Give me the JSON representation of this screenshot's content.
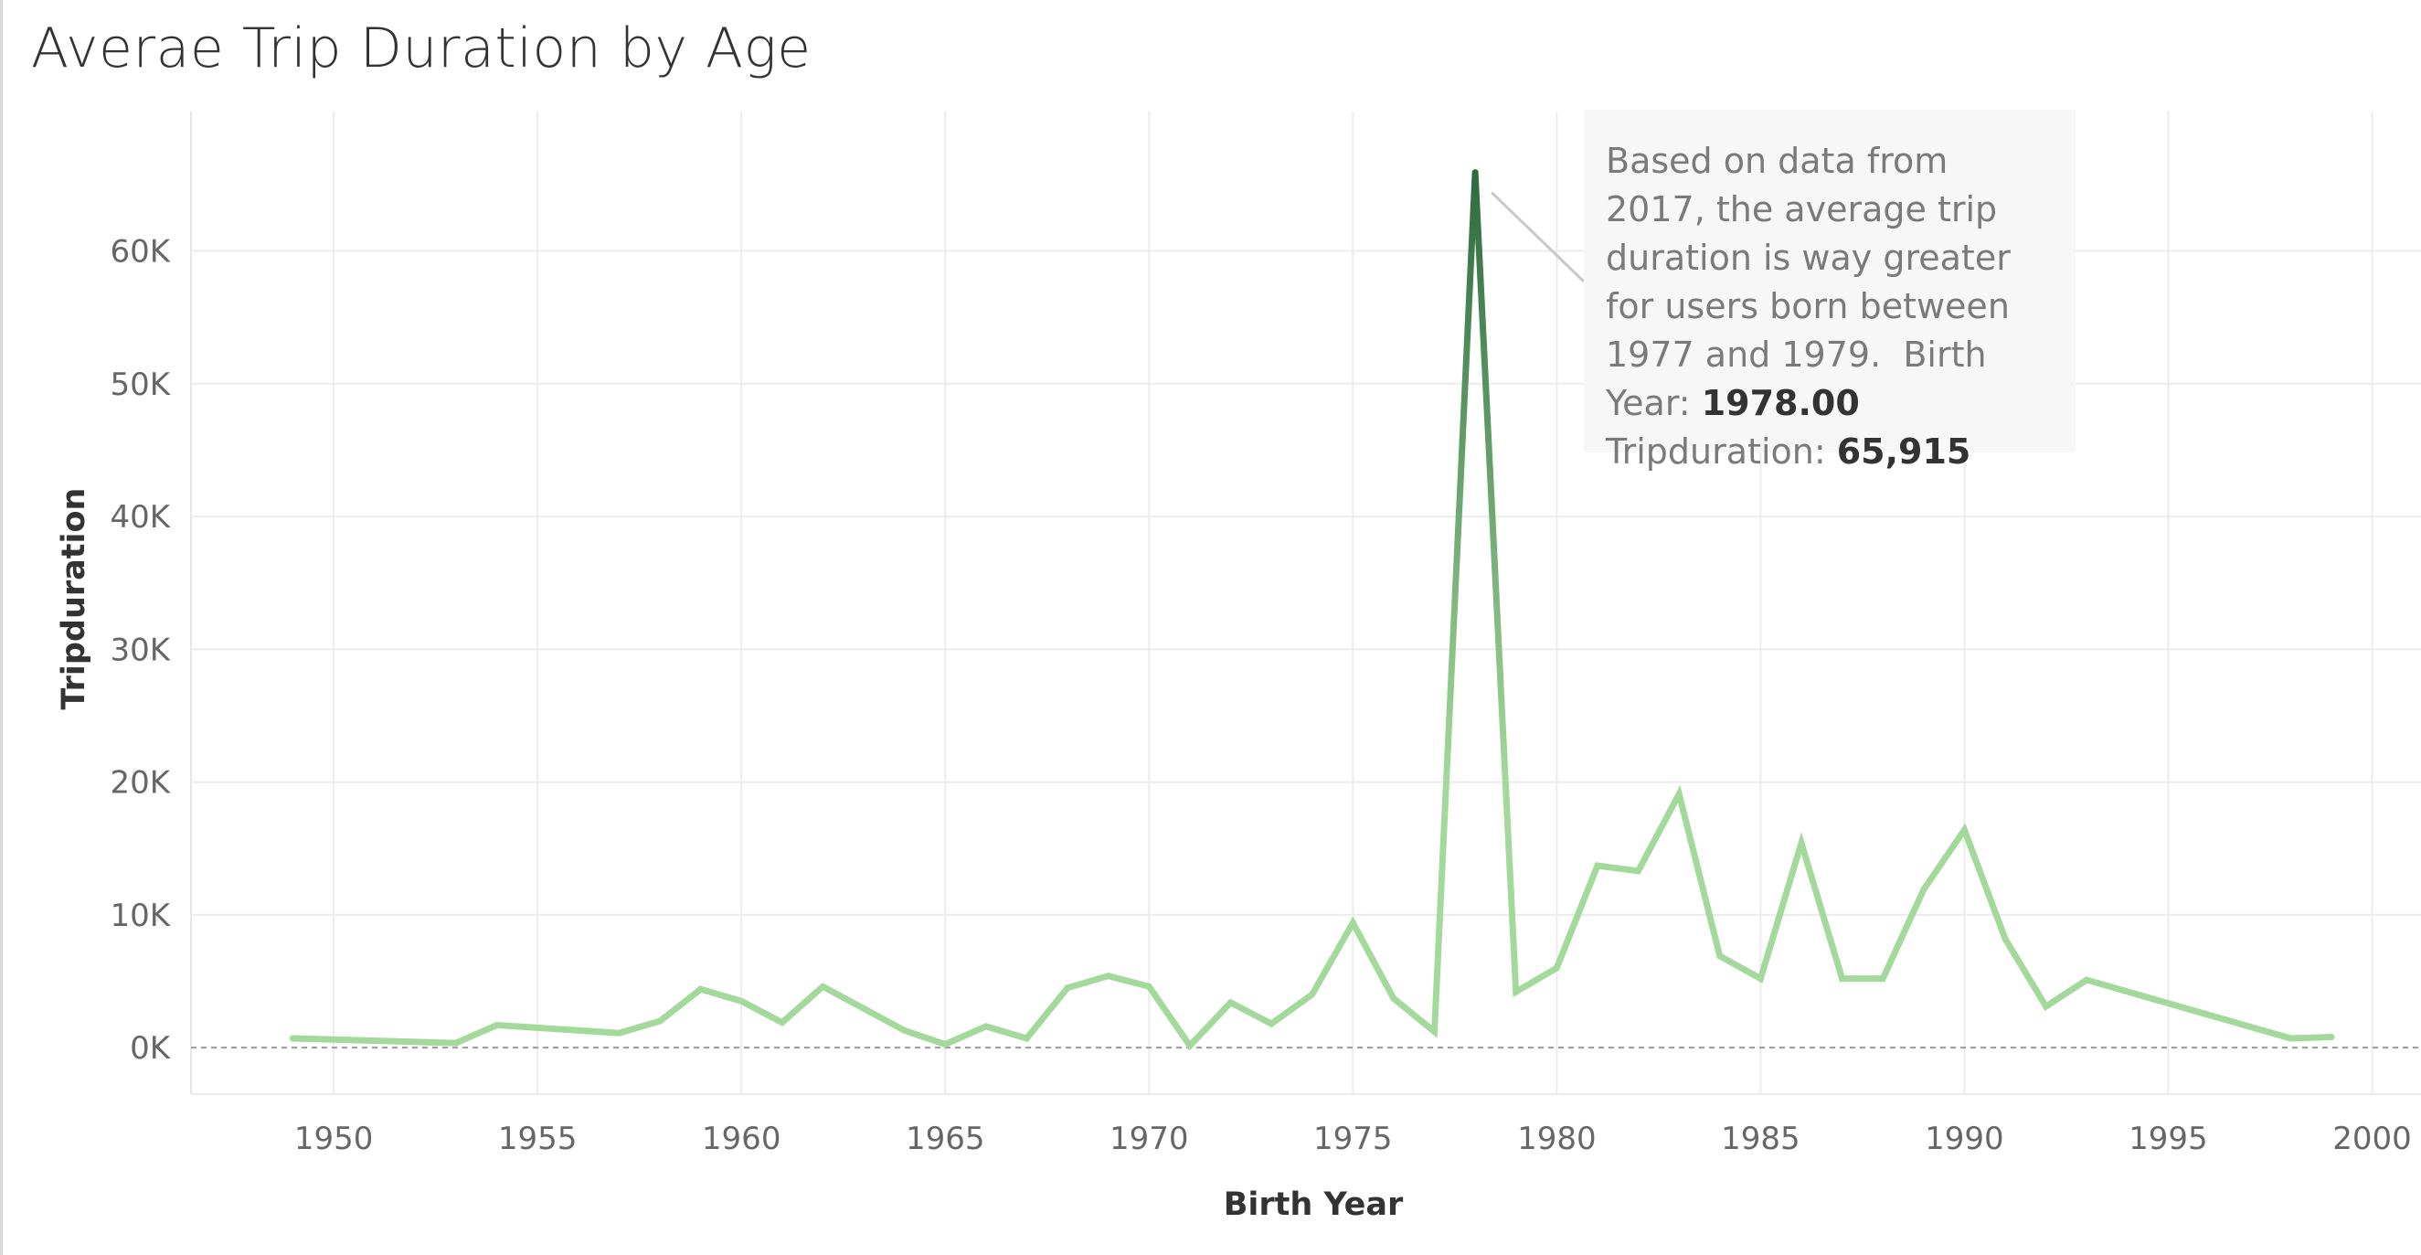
{
  "title": "Averae Trip Duration by Age",
  "chart_data": {
    "type": "line",
    "title": "Averae Trip Duration by Age",
    "xlabel": "Birth Year",
    "ylabel": "Tripduration",
    "xlim": [
      1946.5,
      2001.2
    ],
    "ylim": [
      -3500,
      70500
    ],
    "x_ticks": [
      1950,
      1955,
      1960,
      1965,
      1970,
      1975,
      1980,
      1985,
      1990,
      1995,
      2000
    ],
    "y_ticks": [
      0,
      10000,
      20000,
      30000,
      40000,
      50000,
      60000
    ],
    "x_tick_labels": [
      "1950",
      "1955",
      "1960",
      "1965",
      "1970",
      "1975",
      "1980",
      "1985",
      "1990",
      "1995",
      "2000"
    ],
    "y_tick_labels": [
      "0K",
      "10K",
      "20K",
      "30K",
      "40K",
      "50K",
      "60K"
    ],
    "grid": true,
    "series": [
      {
        "x": [
          1949,
          1953,
          1954,
          1957,
          1958,
          1959,
          1960,
          1961,
          1962,
          1964,
          1965,
          1966,
          1967,
          1968,
          1969,
          1970,
          1971,
          1972,
          1973,
          1974,
          1975,
          1976,
          1977,
          1978,
          1979,
          1980,
          1981,
          1982,
          1983,
          1984,
          1985,
          1986,
          1987,
          1988,
          1989,
          1990,
          1991,
          1992,
          1993,
          1998,
          1999
        ],
        "y": [
          700,
          350,
          1700,
          1100,
          2000,
          4400,
          3500,
          1900,
          4600,
          1300,
          250,
          1600,
          700,
          4500,
          5400,
          4600,
          150,
          3400,
          1800,
          4000,
          9400,
          3700,
          1200,
          65915,
          4200,
          6000,
          13700,
          13300,
          19100,
          6900,
          5200,
          15400,
          5200,
          5200,
          11900,
          16400,
          8200,
          3100,
          5100,
          700,
          800
        ]
      }
    ],
    "color_scale": {
      "low": "#a3d99a",
      "high": "#2e6b3f"
    },
    "annotation": {
      "text": "Based on data from 2017, the average trip duration is way greater for users born between 1977 and 1979.",
      "birth_year_label": "Birth Year:",
      "birth_year_value": "1978.00",
      "tripduration_label": "Tripduration:",
      "tripduration_value": "65,915",
      "target_x": 1978,
      "target_y": 65915
    }
  }
}
